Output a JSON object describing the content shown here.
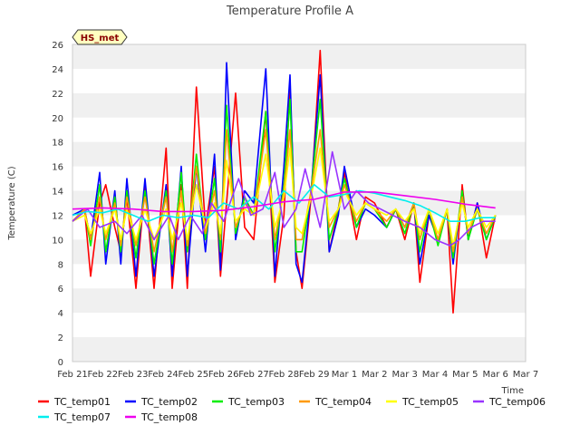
{
  "chart_data": {
    "type": "line",
    "title": "Temperature Profile A",
    "xlabel": "Time",
    "ylabel": "Temperature (C)",
    "badge": "HS_met",
    "xlim": [
      0,
      15
    ],
    "ylim": [
      0,
      26
    ],
    "yticks": [
      0,
      2,
      4,
      6,
      8,
      10,
      12,
      14,
      16,
      18,
      20,
      22,
      24,
      26
    ],
    "xtick_labels": [
      "Feb 21",
      "Feb 22",
      "Feb 23",
      "Feb 24",
      "Feb 25",
      "Feb 26",
      "Feb 27",
      "Feb 28",
      "Feb 29",
      "Mar 1",
      "Mar 2",
      "Mar 3",
      "Mar 4",
      "Mar 5",
      "Mar 6",
      "Mar 7"
    ],
    "x_note": "x values are days after Feb 21",
    "grid": "alternating horizontal bands",
    "legend": "bottom",
    "series": [
      {
        "name": "TC_temp01",
        "color": "#ff0000",
        "x": [
          0,
          0.4,
          0.6,
          0.9,
          1.1,
          1.4,
          1.6,
          1.8,
          2.1,
          2.4,
          2.7,
          3.1,
          3.3,
          3.6,
          3.8,
          4.1,
          4.4,
          4.7,
          4.9,
          5.1,
          5.4,
          5.7,
          6.0,
          6.4,
          6.7,
          7.0,
          7.2,
          7.4,
          7.6,
          7.9,
          8.2,
          8.5,
          8.8,
          9.0,
          9.4,
          9.7,
          10.0,
          10.4,
          10.7,
          11.0,
          11.3,
          11.5,
          11.8,
          12.1,
          12.4,
          12.6,
          12.9,
          13.1,
          13.4,
          13.7,
          14.0
        ],
        "y": [
          11.5,
          12.5,
          7,
          13,
          14.5,
          11,
          9,
          13.5,
          6,
          14.5,
          6,
          17.5,
          6,
          14.5,
          6,
          22.5,
          11,
          16,
          7,
          13,
          22,
          11,
          10,
          20.5,
          6.5,
          12,
          22.5,
          9,
          6,
          13.5,
          25.5,
          9,
          12.5,
          15.5,
          10,
          13.5,
          13,
          11,
          12.5,
          10,
          13,
          6.5,
          12,
          10,
          12.5,
          4,
          14.5,
          10,
          13,
          8.5,
          12
        ]
      },
      {
        "name": "TC_temp02",
        "color": "#0000ff",
        "x": [
          0,
          0.4,
          0.6,
          0.9,
          1.1,
          1.4,
          1.6,
          1.8,
          2.1,
          2.4,
          2.7,
          3.1,
          3.3,
          3.6,
          3.8,
          4.1,
          4.4,
          4.7,
          4.9,
          5.1,
          5.4,
          5.7,
          6.0,
          6.4,
          6.7,
          7.0,
          7.2,
          7.4,
          7.6,
          7.9,
          8.2,
          8.5,
          8.8,
          9.0,
          9.4,
          9.7,
          10.0,
          10.4,
          10.7,
          11.0,
          11.3,
          11.5,
          11.8,
          12.1,
          12.4,
          12.6,
          12.9,
          13.1,
          13.4,
          13.7,
          14.0
        ],
        "y": [
          12,
          12.5,
          10,
          15.5,
          8,
          14,
          8,
          15,
          7,
          15,
          7,
          14.5,
          7,
          16,
          7,
          16,
          9,
          17,
          7.5,
          24.5,
          10,
          14,
          13,
          24,
          7,
          16,
          23.5,
          8,
          6.5,
          14,
          23.5,
          9,
          12,
          16,
          11,
          12.5,
          12,
          11,
          12.5,
          11,
          13,
          8,
          12,
          10,
          12.5,
          8,
          14,
          10,
          13,
          10,
          12
        ]
      },
      {
        "name": "TC_temp03",
        "color": "#00ee00",
        "x": [
          0,
          0.4,
          0.6,
          0.9,
          1.1,
          1.4,
          1.6,
          1.8,
          2.1,
          2.4,
          2.7,
          3.1,
          3.3,
          3.6,
          3.8,
          4.1,
          4.4,
          4.7,
          4.9,
          5.1,
          5.4,
          5.7,
          6.0,
          6.4,
          6.7,
          7.0,
          7.2,
          7.4,
          7.6,
          7.9,
          8.2,
          8.5,
          8.8,
          9.0,
          9.4,
          9.7,
          10.0,
          10.4,
          10.7,
          11.0,
          11.3,
          11.5,
          11.8,
          12.1,
          12.4,
          12.6,
          12.9,
          13.1,
          13.4,
          13.7,
          14.0
        ],
        "y": [
          11.5,
          12.5,
          9.5,
          14.5,
          9,
          13.5,
          9,
          14,
          8.5,
          14,
          8,
          14,
          8,
          15.5,
          9,
          17,
          10,
          15,
          9,
          21,
          10.5,
          13.5,
          12,
          20.5,
          9,
          14.5,
          21.5,
          9,
          9,
          14,
          21.5,
          10,
          12.5,
          15,
          11,
          13,
          12.5,
          11,
          12.5,
          10.5,
          13,
          9,
          12.5,
          9.5,
          12.5,
          8.5,
          14,
          10,
          12.5,
          10,
          12
        ]
      },
      {
        "name": "TC_temp04",
        "color": "#ff9900",
        "x": [
          0,
          0.4,
          0.6,
          0.9,
          1.1,
          1.4,
          1.6,
          1.8,
          2.1,
          2.4,
          2.7,
          3.1,
          3.3,
          3.6,
          3.8,
          4.1,
          4.4,
          4.7,
          4.9,
          5.1,
          5.4,
          5.7,
          6.0,
          6.4,
          6.7,
          7.0,
          7.2,
          7.4,
          7.6,
          7.9,
          8.2,
          8.5,
          8.8,
          9.0,
          9.4,
          9.7,
          10.0,
          10.4,
          10.7,
          11.0,
          11.3,
          11.5,
          11.8,
          12.1,
          12.4,
          12.6,
          12.9,
          13.1,
          13.4,
          13.7,
          14.0
        ],
        "y": [
          11.5,
          12.5,
          10,
          13.5,
          10,
          13,
          9.5,
          13.5,
          9.5,
          13.5,
          9,
          13.5,
          9,
          14,
          9.5,
          16,
          10.5,
          14,
          10,
          19,
          11,
          13,
          12,
          19,
          10,
          14,
          19,
          10,
          10,
          14,
          19,
          11,
          12.5,
          14.5,
          11.5,
          13,
          12.5,
          11.5,
          12.5,
          11,
          13,
          10,
          12.5,
          10,
          12.5,
          9,
          13.5,
          10.5,
          12.5,
          10.5,
          12
        ]
      },
      {
        "name": "TC_temp05",
        "color": "#ffff00",
        "x": [
          0,
          0.4,
          0.6,
          0.9,
          1.1,
          1.4,
          1.6,
          1.8,
          2.1,
          2.4,
          2.7,
          3.1,
          3.3,
          3.6,
          3.8,
          4.1,
          4.4,
          4.7,
          4.9,
          5.1,
          5.4,
          5.7,
          6.0,
          6.4,
          6.7,
          7.0,
          7.2,
          7.4,
          7.6,
          7.9,
          8.2,
          8.5,
          8.8,
          9.0,
          9.4,
          9.7,
          10.0,
          10.4,
          10.7,
          11.0,
          11.3,
          11.5,
          11.8,
          12.1,
          12.4,
          12.6,
          12.9,
          13.1,
          13.4,
          13.7,
          14.0
        ],
        "y": [
          11.5,
          12,
          10.5,
          12.5,
          10.5,
          12.5,
          10,
          12.5,
          10,
          12.5,
          10,
          12.5,
          10,
          13,
          10,
          14.5,
          11,
          13,
          10.5,
          16.5,
          11.5,
          12.5,
          12,
          17,
          11,
          13.5,
          17.5,
          11,
          10.5,
          13.5,
          17.5,
          11.5,
          12.5,
          14,
          12,
          13,
          12.5,
          12,
          12.5,
          11.5,
          12.5,
          10.5,
          12.5,
          10.5,
          12.5,
          9.5,
          13,
          11,
          12.5,
          11,
          12
        ]
      },
      {
        "name": "TC_temp06",
        "color": "#9933ff",
        "x": [
          0,
          0.5,
          0.9,
          1.4,
          1.8,
          2.3,
          2.7,
          3.2,
          3.5,
          3.9,
          4.3,
          4.6,
          5.0,
          5.5,
          5.9,
          6.3,
          6.7,
          7.0,
          7.4,
          7.7,
          8.2,
          8.6,
          9.0,
          9.4,
          9.8,
          10.2,
          10.6,
          11.0,
          11.5,
          12.0,
          12.5,
          12.8,
          13.2,
          13.6,
          14.0
        ],
        "y": [
          11.5,
          12.5,
          11,
          11.5,
          10.5,
          12,
          10,
          12,
          10,
          12,
          10.5,
          13,
          11.5,
          15,
          12,
          12.5,
          15.5,
          11,
          12.5,
          15.8,
          11,
          17.2,
          12.5,
          14,
          13,
          12.5,
          12,
          11.5,
          11,
          10,
          9.5,
          10,
          11,
          11.5,
          11.5
        ]
      },
      {
        "name": "TC_temp07",
        "color": "#00eeee",
        "x": [
          0,
          0.5,
          1.0,
          1.5,
          2.0,
          2.5,
          3.0,
          3.5,
          4.0,
          4.5,
          5.0,
          5.5,
          6.0,
          6.5,
          7.0,
          7.5,
          8.0,
          8.5,
          9.0,
          9.5,
          10.0,
          10.5,
          11.0,
          11.5,
          12.0,
          12.5,
          13.0,
          13.5,
          14.0
        ],
        "y": [
          12,
          12.3,
          12.2,
          12.5,
          12,
          11.5,
          12,
          11.8,
          12,
          11.8,
          13,
          12.5,
          13.5,
          12.5,
          14,
          13,
          14.5,
          13.5,
          13.7,
          14,
          13.8,
          13.5,
          13.2,
          12.8,
          12.2,
          11.5,
          11.5,
          11.8,
          11.8
        ]
      },
      {
        "name": "TC_temp08",
        "color": "#ee00ee",
        "x": [
          0,
          1,
          2,
          3,
          4,
          5,
          6,
          7,
          8,
          9,
          10,
          11,
          12,
          13,
          14
        ],
        "y": [
          12.5,
          12.6,
          12.5,
          12.3,
          12.3,
          12.4,
          12.7,
          13.1,
          13.3,
          13.9,
          13.9,
          13.6,
          13.3,
          12.9,
          12.6
        ]
      }
    ]
  }
}
